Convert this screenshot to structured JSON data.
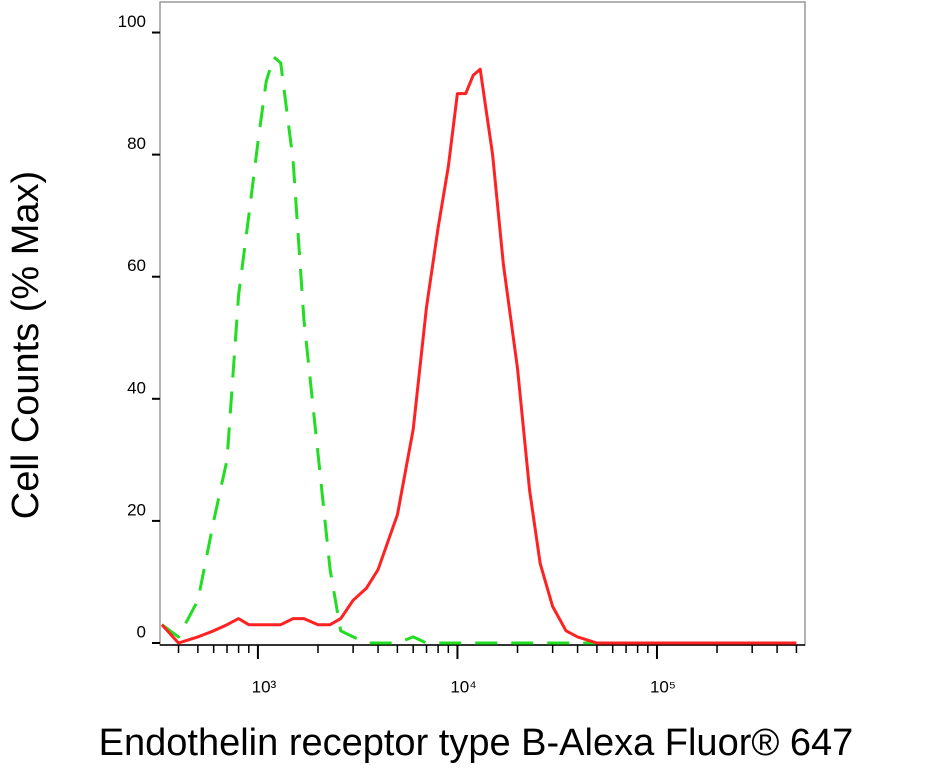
{
  "chart_data": {
    "type": "line",
    "x_label": "Endothelin receptor type B-Alexa Fluor® 647",
    "y_label": "Cell Counts (% Max)",
    "x_scale": "log",
    "xlim": [
      323,
      552000
    ],
    "ylim": [
      0,
      105
    ],
    "xticks": [
      {
        "value": 1000,
        "label": "10³"
      },
      {
        "value": 10000,
        "label": "10⁴"
      },
      {
        "value": 100000,
        "label": "10⁵"
      }
    ],
    "xminorticks": [
      400,
      500,
      600,
      700,
      800,
      900,
      2000,
      3000,
      4000,
      5000,
      6000,
      7000,
      8000,
      9000,
      20000,
      30000,
      40000,
      50000,
      60000,
      70000,
      80000,
      90000,
      200000,
      300000,
      400000,
      500000
    ],
    "yticks": [
      0,
      20,
      40,
      60,
      80,
      100
    ],
    "x": [
      330,
      400,
      500,
      600,
      700,
      800,
      900,
      1000,
      1100,
      1200,
      1300,
      1500,
      1700,
      2000,
      2300,
      2600,
      3000,
      3500,
      4000,
      5000,
      6000,
      7000,
      8000,
      9000,
      10000,
      11000,
      12000,
      13000,
      15000,
      17000,
      20000,
      23000,
      26000,
      30000,
      35000,
      40000,
      50000,
      100000,
      200000,
      500000
    ],
    "series": [
      {
        "color": "#22dd22",
        "dash": true,
        "values": [
          3,
          1,
          7,
          20,
          30,
          57,
          70,
          82,
          92,
          96,
          95,
          79,
          53,
          31,
          12,
          2,
          1,
          0,
          0,
          0,
          1,
          0,
          0,
          0,
          0,
          0,
          0,
          0,
          0,
          0,
          0,
          0,
          0,
          0,
          0,
          0,
          0,
          0,
          0,
          0
        ]
      },
      {
        "color": "#ff2222",
        "dash": false,
        "values": [
          3,
          0,
          1,
          2,
          3,
          4,
          3,
          3,
          3,
          3,
          3,
          4,
          4,
          3,
          3,
          4,
          7,
          9,
          12,
          21,
          35,
          55,
          68,
          78,
          90,
          90,
          93,
          94,
          80,
          62,
          45,
          25,
          13,
          6,
          2,
          1,
          0,
          0,
          0,
          0
        ]
      }
    ]
  }
}
